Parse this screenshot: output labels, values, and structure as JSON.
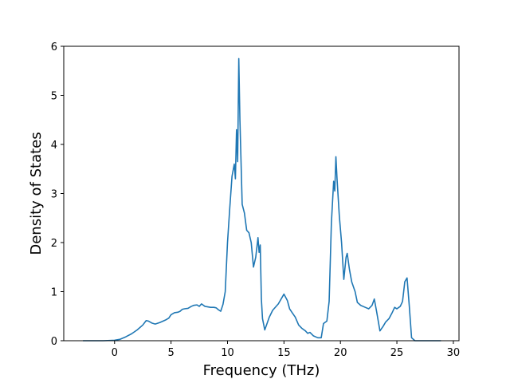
{
  "chart_data": {
    "type": "line",
    "title": "",
    "xlabel": "Frequency (THz)",
    "ylabel": "Density of States",
    "xlim": [
      -4.5,
      30.5
    ],
    "ylim": [
      0,
      6
    ],
    "xticks": [
      0,
      5,
      10,
      15,
      20,
      25,
      30
    ],
    "yticks": [
      0,
      1,
      2,
      3,
      4,
      5,
      6
    ],
    "grid": false,
    "legend": "none",
    "series": [
      {
        "color": "#1f77b4",
        "x": [
          -2.8,
          -1.0,
          0.0,
          0.5,
          1.0,
          1.5,
          2.0,
          2.5,
          2.8,
          3.0,
          3.3,
          3.6,
          4.0,
          4.5,
          4.8,
          5.0,
          5.3,
          5.6,
          5.8,
          6.0,
          6.2,
          6.5,
          6.8,
          7.0,
          7.3,
          7.5,
          7.7,
          8.0,
          8.5,
          8.8,
          9.0,
          9.2,
          9.4,
          9.6,
          9.8,
          10.0,
          10.2,
          10.4,
          10.6,
          10.7,
          10.8,
          10.9,
          11.0,
          11.1,
          11.3,
          11.5,
          11.7,
          11.9,
          12.1,
          12.3,
          12.5,
          12.7,
          12.8,
          12.9,
          13.0,
          13.1,
          13.3,
          13.5,
          13.7,
          14.0,
          14.5,
          15.0,
          15.3,
          15.5,
          15.7,
          16.0,
          16.3,
          16.6,
          16.9,
          17.1,
          17.3,
          17.6,
          18.0,
          18.3,
          18.5,
          18.8,
          19.0,
          19.2,
          19.4,
          19.5,
          19.6,
          19.7,
          19.9,
          20.1,
          20.3,
          20.5,
          20.6,
          20.8,
          21.0,
          21.3,
          21.5,
          21.8,
          22.2,
          22.5,
          22.8,
          23.0,
          23.2,
          23.5,
          23.8,
          24.0,
          24.3,
          24.6,
          24.8,
          25.0,
          25.3,
          25.5,
          25.7,
          25.9,
          26.1,
          26.3,
          26.6,
          28.9
        ],
        "y": [
          0.0,
          0.0,
          0.01,
          0.03,
          0.08,
          0.14,
          0.22,
          0.32,
          0.41,
          0.4,
          0.36,
          0.34,
          0.37,
          0.42,
          0.46,
          0.53,
          0.57,
          0.58,
          0.6,
          0.64,
          0.65,
          0.66,
          0.7,
          0.72,
          0.73,
          0.7,
          0.75,
          0.7,
          0.68,
          0.68,
          0.67,
          0.63,
          0.6,
          0.74,
          1.0,
          2.0,
          2.7,
          3.35,
          3.6,
          3.3,
          4.3,
          3.65,
          5.75,
          4.5,
          2.78,
          2.6,
          2.25,
          2.2,
          2.0,
          1.5,
          1.7,
          2.1,
          1.8,
          1.95,
          0.85,
          0.45,
          0.22,
          0.35,
          0.48,
          0.62,
          0.75,
          0.95,
          0.82,
          0.65,
          0.58,
          0.48,
          0.32,
          0.25,
          0.2,
          0.15,
          0.17,
          0.1,
          0.06,
          0.06,
          0.35,
          0.4,
          0.8,
          2.4,
          3.25,
          3.05,
          3.75,
          3.3,
          2.55,
          2.0,
          1.25,
          1.7,
          1.78,
          1.45,
          1.2,
          1.0,
          0.78,
          0.72,
          0.68,
          0.65,
          0.72,
          0.85,
          0.6,
          0.2,
          0.3,
          0.38,
          0.45,
          0.58,
          0.68,
          0.65,
          0.7,
          0.8,
          1.2,
          1.28,
          0.7,
          0.06,
          0.0,
          0.0
        ]
      }
    ]
  }
}
